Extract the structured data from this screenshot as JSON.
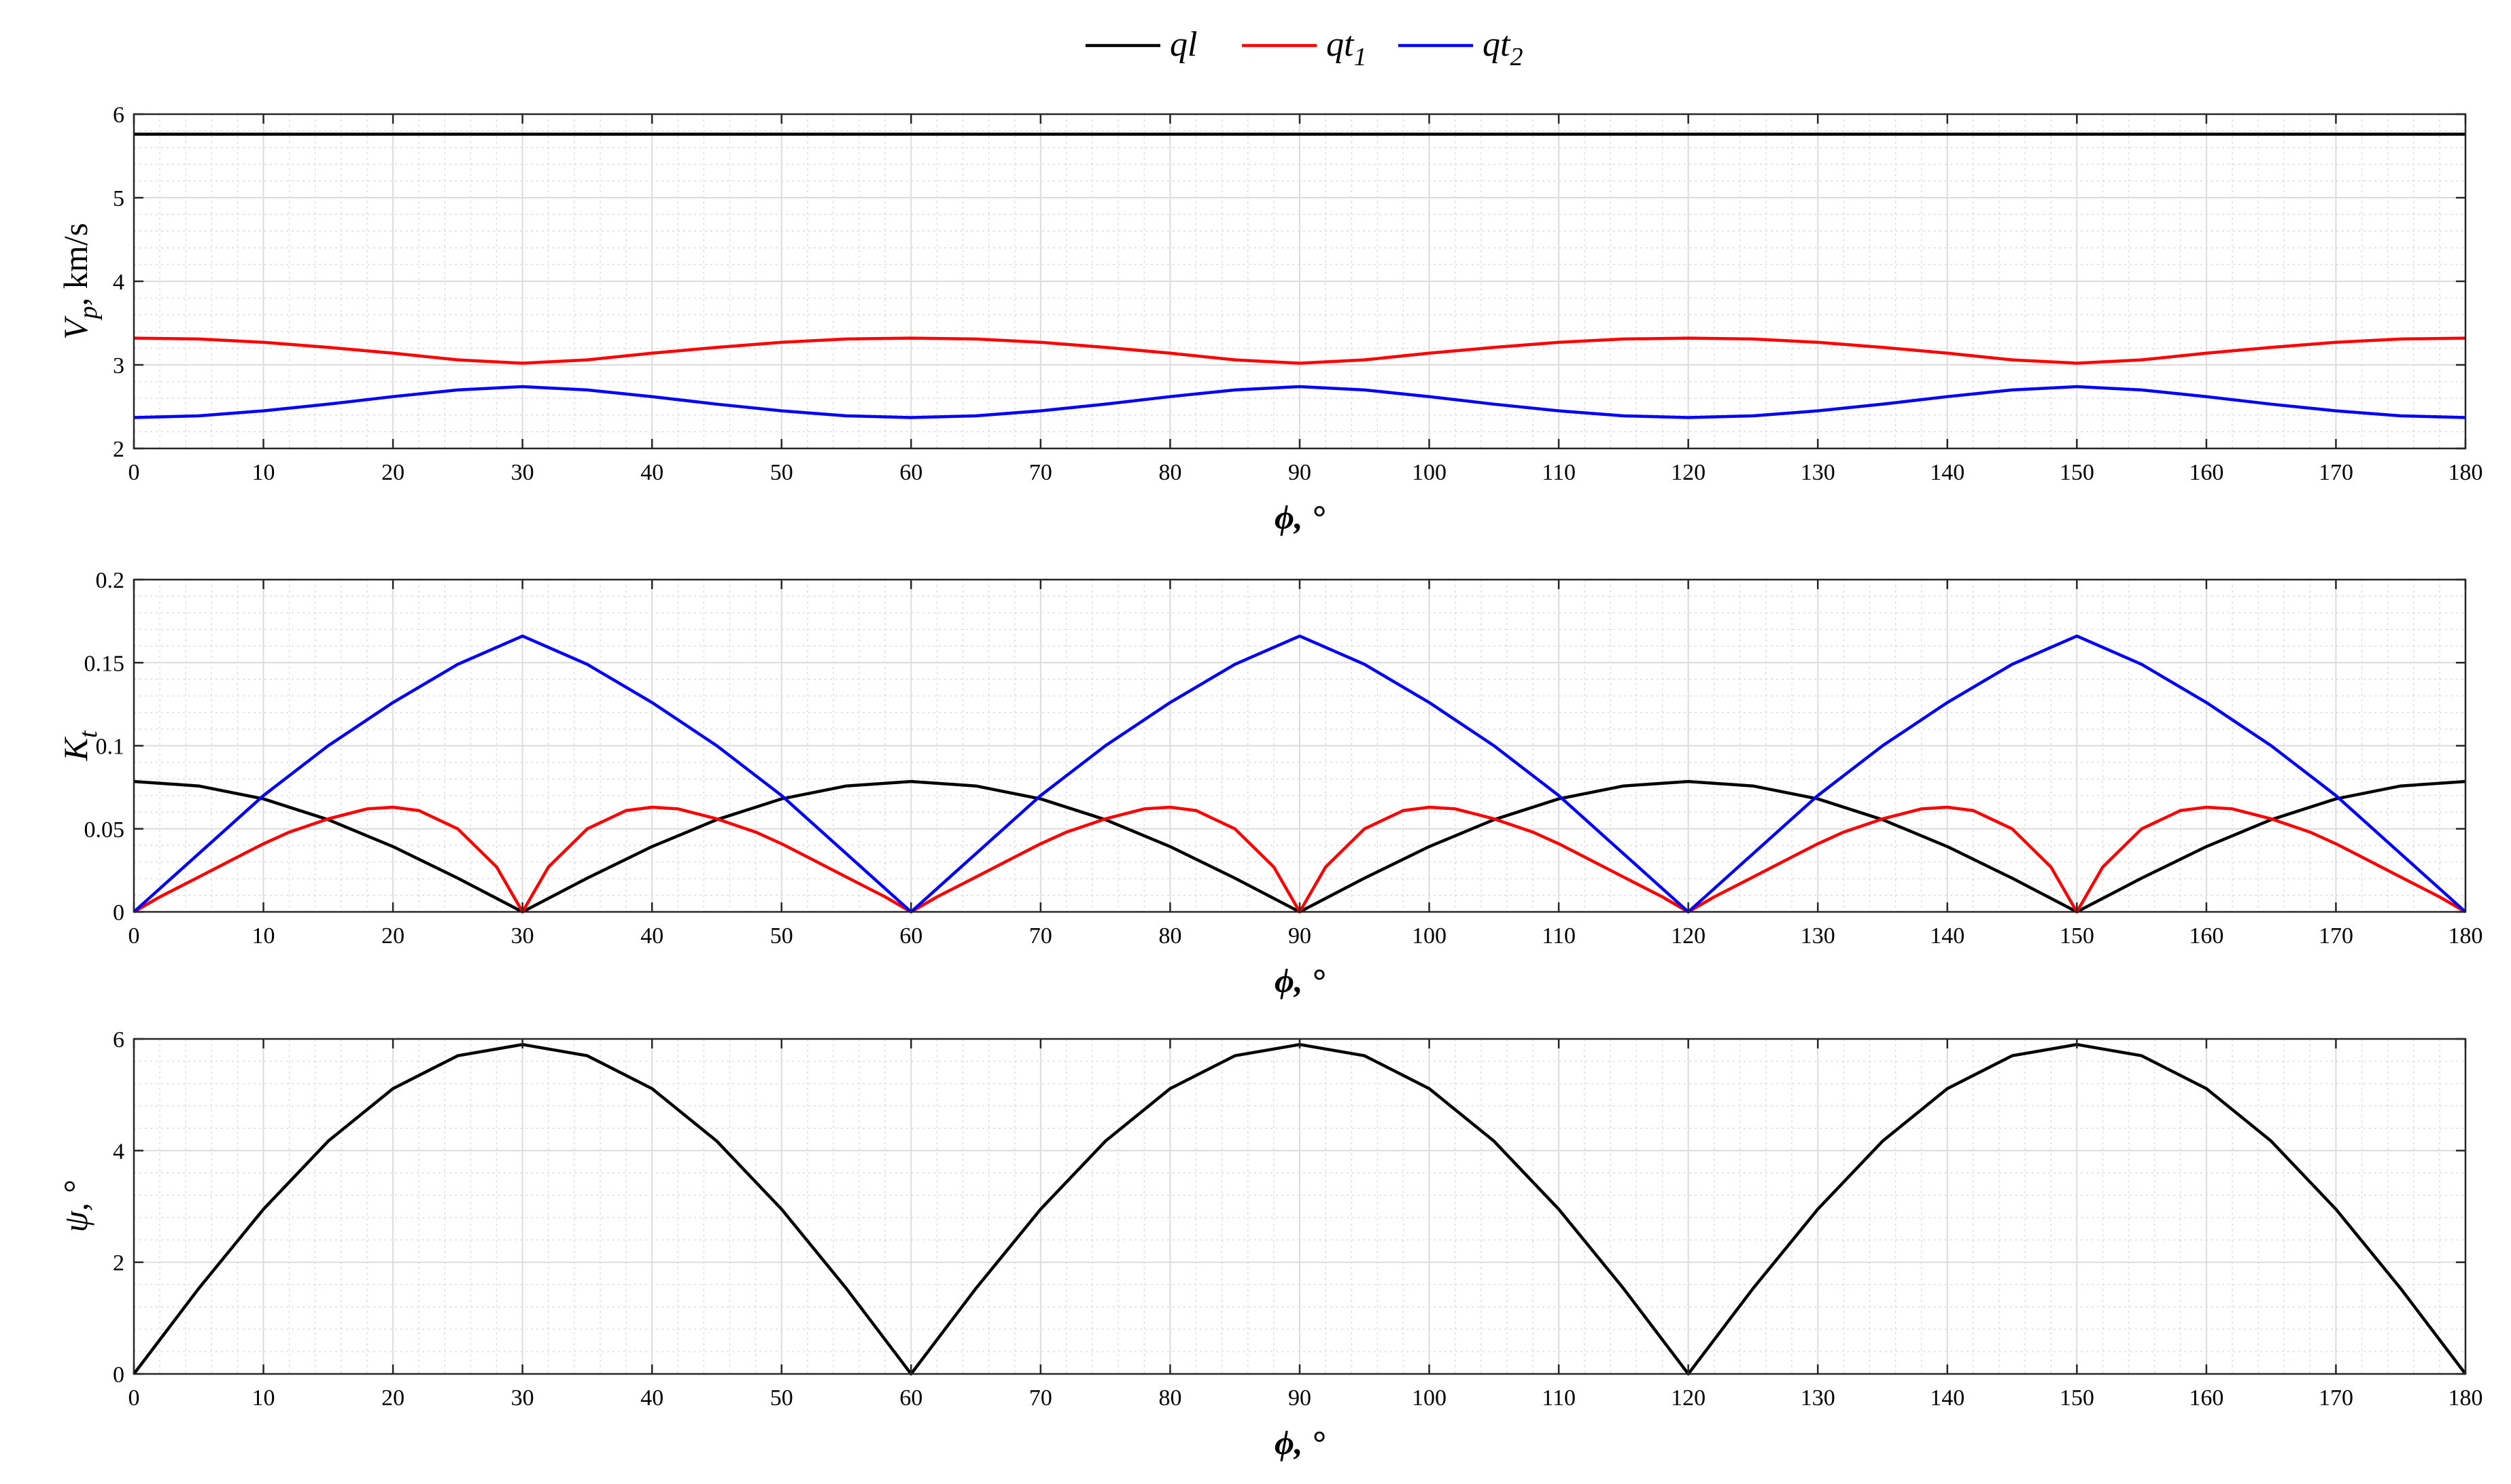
{
  "legend": {
    "entries": [
      {
        "label_main": "ql",
        "label_sub": "",
        "color": "#000000"
      },
      {
        "label_main": "qt",
        "label_sub": "1",
        "color": "#ff0000"
      },
      {
        "label_main": "qt",
        "label_sub": "2",
        "color": "#0000ff"
      }
    ]
  },
  "chart_data": [
    {
      "type": "line",
      "xlabel": "ϕ, °",
      "ylabel_main": "V",
      "ylabel_sub": "p",
      "ylabel_rest": ", km/s",
      "xlim": [
        0,
        180
      ],
      "ylim": [
        2,
        6
      ],
      "xticks": [
        0,
        10,
        20,
        30,
        40,
        50,
        60,
        70,
        80,
        90,
        100,
        110,
        120,
        130,
        140,
        150,
        160,
        170,
        180
      ],
      "yticks": [
        2,
        3,
        4,
        5,
        6
      ],
      "grid": true,
      "series": [
        {
          "name": "ql",
          "color": "#000000",
          "x": [
            0,
            10,
            20,
            30,
            40,
            50,
            60,
            70,
            80,
            90,
            100,
            110,
            120,
            130,
            140,
            150,
            160,
            170,
            180
          ],
          "y": [
            5.76,
            5.76,
            5.76,
            5.76,
            5.76,
            5.76,
            5.76,
            5.76,
            5.76,
            5.76,
            5.76,
            5.76,
            5.76,
            5.76,
            5.76,
            5.76,
            5.76,
            5.76,
            5.76
          ]
        },
        {
          "name": "qt1",
          "color": "#ff0000",
          "x": [
            0,
            5,
            10,
            15,
            20,
            25,
            30,
            35,
            40,
            45,
            50,
            55,
            60,
            65,
            70,
            75,
            80,
            85,
            90,
            95,
            100,
            105,
            110,
            115,
            120,
            125,
            130,
            135,
            140,
            145,
            150,
            155,
            160,
            165,
            170,
            175,
            180
          ],
          "y": [
            3.32,
            3.31,
            3.27,
            3.21,
            3.14,
            3.06,
            3.02,
            3.06,
            3.14,
            3.21,
            3.27,
            3.31,
            3.32,
            3.31,
            3.27,
            3.21,
            3.14,
            3.06,
            3.02,
            3.06,
            3.14,
            3.21,
            3.27,
            3.31,
            3.32,
            3.31,
            3.27,
            3.21,
            3.14,
            3.06,
            3.02,
            3.06,
            3.14,
            3.21,
            3.27,
            3.31,
            3.32
          ]
        },
        {
          "name": "qt2",
          "color": "#0000ff",
          "x": [
            0,
            5,
            10,
            15,
            20,
            25,
            30,
            35,
            40,
            45,
            50,
            55,
            60,
            65,
            70,
            75,
            80,
            85,
            90,
            95,
            100,
            105,
            110,
            115,
            120,
            125,
            130,
            135,
            140,
            145,
            150,
            155,
            160,
            165,
            170,
            175,
            180
          ],
          "y": [
            2.37,
            2.39,
            2.45,
            2.53,
            2.62,
            2.7,
            2.74,
            2.7,
            2.62,
            2.53,
            2.45,
            2.39,
            2.37,
            2.39,
            2.45,
            2.53,
            2.62,
            2.7,
            2.74,
            2.7,
            2.62,
            2.53,
            2.45,
            2.39,
            2.37,
            2.39,
            2.45,
            2.53,
            2.62,
            2.7,
            2.74,
            2.7,
            2.62,
            2.53,
            2.45,
            2.39,
            2.37
          ]
        }
      ]
    },
    {
      "type": "line",
      "xlabel": "ϕ, °",
      "ylabel_main": "K",
      "ylabel_sub": "t",
      "ylabel_rest": "",
      "xlim": [
        0,
        180
      ],
      "ylim": [
        0,
        0.2
      ],
      "xticks": [
        0,
        10,
        20,
        30,
        40,
        50,
        60,
        70,
        80,
        90,
        100,
        110,
        120,
        130,
        140,
        150,
        160,
        170,
        180
      ],
      "yticks": [
        0,
        0.05,
        0.1,
        0.15,
        0.2
      ],
      "grid": true,
      "series": [
        {
          "name": "ql",
          "color": "#000000",
          "x": [
            0,
            5,
            10,
            15,
            20,
            25,
            30,
            35,
            40,
            45,
            50,
            55,
            60,
            65,
            70,
            75,
            80,
            85,
            90,
            95,
            100,
            105,
            110,
            115,
            120,
            125,
            130,
            135,
            140,
            145,
            150,
            155,
            160,
            165,
            170,
            175,
            180
          ],
          "y": [
            0.0785,
            0.0758,
            0.068,
            0.0555,
            0.0393,
            0.0203,
            0,
            0.0203,
            0.0393,
            0.0555,
            0.068,
            0.0758,
            0.0785,
            0.0758,
            0.068,
            0.0555,
            0.0393,
            0.0203,
            0,
            0.0203,
            0.0393,
            0.0555,
            0.068,
            0.0758,
            0.0785,
            0.0758,
            0.068,
            0.0555,
            0.0393,
            0.0203,
            0,
            0.0203,
            0.0393,
            0.0555,
            0.068,
            0.0758,
            0.0785
          ]
        },
        {
          "name": "qt1",
          "color": "#ff0000",
          "x": [
            0,
            2,
            5,
            8,
            10,
            12,
            15,
            18,
            20,
            22,
            25,
            28,
            30,
            32,
            35,
            38,
            40,
            42,
            45,
            48,
            50,
            52,
            55,
            58,
            60,
            62,
            65,
            68,
            70,
            72,
            75,
            78,
            80,
            82,
            85,
            88,
            90,
            92,
            95,
            98,
            100,
            102,
            105,
            108,
            110,
            112,
            115,
            118,
            120,
            122,
            125,
            128,
            130,
            132,
            135,
            138,
            140,
            142,
            145,
            148,
            150,
            152,
            155,
            158,
            160,
            162,
            165,
            168,
            170,
            172,
            175,
            178,
            180
          ],
          "y": [
            0,
            0.009,
            0.021,
            0.033,
            0.041,
            0.048,
            0.056,
            0.062,
            0.063,
            0.061,
            0.05,
            0.027,
            0,
            0.027,
            0.05,
            0.061,
            0.063,
            0.062,
            0.056,
            0.048,
            0.041,
            0.033,
            0.021,
            0.009,
            0,
            0.009,
            0.021,
            0.033,
            0.041,
            0.048,
            0.056,
            0.062,
            0.063,
            0.061,
            0.05,
            0.027,
            0,
            0.027,
            0.05,
            0.061,
            0.063,
            0.062,
            0.056,
            0.048,
            0.041,
            0.033,
            0.021,
            0.009,
            0,
            0.009,
            0.021,
            0.033,
            0.041,
            0.048,
            0.056,
            0.062,
            0.063,
            0.061,
            0.05,
            0.027,
            0,
            0.027,
            0.05,
            0.061,
            0.063,
            0.062,
            0.056,
            0.048,
            0.041,
            0.033,
            0.021,
            0.009,
            0
          ]
        },
        {
          "name": "qt2",
          "color": "#0000ff",
          "x": [
            0,
            5,
            10,
            15,
            20,
            25,
            30,
            35,
            40,
            45,
            50,
            55,
            60,
            65,
            70,
            75,
            80,
            85,
            90,
            95,
            100,
            105,
            110,
            115,
            120,
            125,
            130,
            135,
            140,
            145,
            150,
            155,
            160,
            165,
            170,
            175,
            180
          ],
          "y": [
            0,
            0.035,
            0.07,
            0.1,
            0.126,
            0.149,
            0.166,
            0.149,
            0.126,
            0.1,
            0.07,
            0.035,
            0,
            0.035,
            0.07,
            0.1,
            0.126,
            0.149,
            0.166,
            0.149,
            0.126,
            0.1,
            0.07,
            0.035,
            0,
            0.035,
            0.07,
            0.1,
            0.126,
            0.149,
            0.166,
            0.149,
            0.126,
            0.1,
            0.07,
            0.035,
            0
          ]
        }
      ]
    },
    {
      "type": "line",
      "xlabel": "ϕ, °",
      "ylabel_main": "ψ, °",
      "ylabel_sub": "",
      "ylabel_rest": "",
      "xlim": [
        0,
        180
      ],
      "ylim": [
        0,
        6
      ],
      "xticks": [
        0,
        10,
        20,
        30,
        40,
        50,
        60,
        70,
        80,
        90,
        100,
        110,
        120,
        130,
        140,
        150,
        160,
        170,
        180
      ],
      "yticks": [
        0,
        2,
        4,
        6
      ],
      "grid": true,
      "series": [
        {
          "name": "ψ",
          "color": "#000000",
          "x": [
            0,
            5,
            10,
            15,
            20,
            25,
            30,
            35,
            40,
            45,
            50,
            55,
            60,
            65,
            70,
            75,
            80,
            85,
            90,
            95,
            100,
            105,
            110,
            115,
            120,
            125,
            130,
            135,
            140,
            145,
            150,
            155,
            160,
            165,
            170,
            175,
            180
          ],
          "y": [
            0,
            1.53,
            2.95,
            4.17,
            5.11,
            5.7,
            5.9,
            5.7,
            5.11,
            4.17,
            2.95,
            1.53,
            0,
            1.53,
            2.95,
            4.17,
            5.11,
            5.7,
            5.9,
            5.7,
            5.11,
            4.17,
            2.95,
            1.53,
            0,
            1.53,
            2.95,
            4.17,
            5.11,
            5.7,
            5.9,
            5.7,
            5.11,
            4.17,
            2.95,
            1.53,
            0
          ]
        }
      ]
    }
  ]
}
